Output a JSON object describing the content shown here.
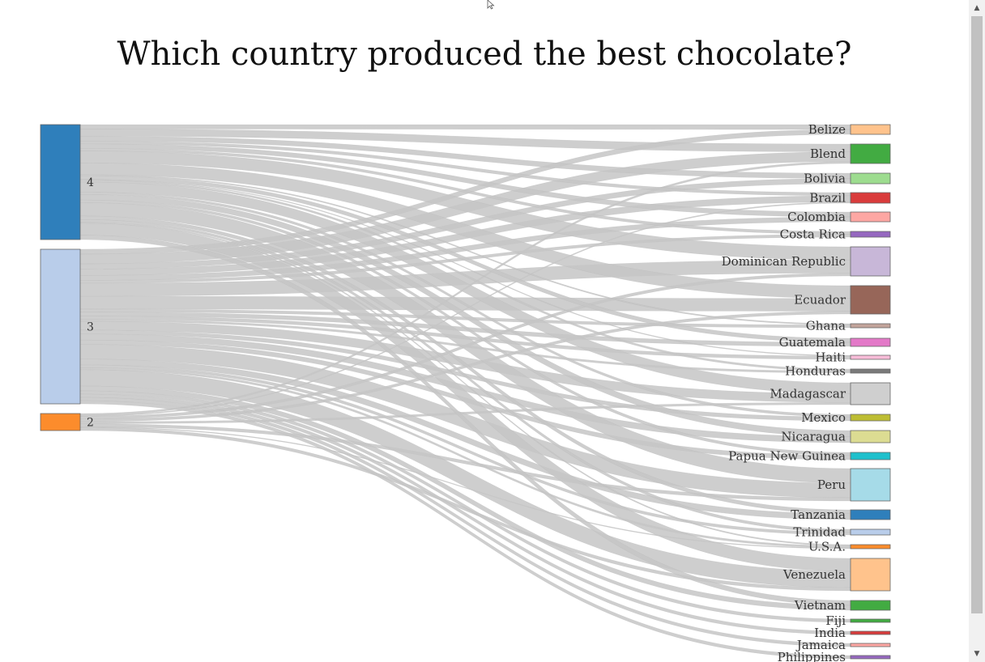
{
  "title": "Which country produced the best chocolate?",
  "chart_data": {
    "type": "sankey",
    "title": "Which country produced the best chocolate?",
    "source_nodes": [
      {
        "label": "4",
        "color": "#2f7fbb"
      },
      {
        "label": "3",
        "color": "#b9cdea"
      },
      {
        "label": "2",
        "color": "#fc8c2c"
      }
    ],
    "target_nodes": [
      {
        "label": "Belize",
        "color": "#ffc38c"
      },
      {
        "label": "Blend",
        "color": "#42ab42"
      },
      {
        "label": "Bolivia",
        "color": "#9ddc8f"
      },
      {
        "label": "Brazil",
        "color": "#d93c3c"
      },
      {
        "label": "Colombia",
        "color": "#fda7a3"
      },
      {
        "label": "Costa Rica",
        "color": "#9668c0"
      },
      {
        "label": "Dominican Republic",
        "color": "#c8b7d8"
      },
      {
        "label": "Ecuador",
        "color": "#976659"
      },
      {
        "label": "Ghana",
        "color": "#c3a49b"
      },
      {
        "label": "Guatemala",
        "color": "#e379c8"
      },
      {
        "label": "Haiti",
        "color": "#f7bcd8"
      },
      {
        "label": "Honduras",
        "color": "#7a7a7a"
      },
      {
        "label": "Madagascar",
        "color": "#cfcfcf"
      },
      {
        "label": "Mexico",
        "color": "#bdbd34"
      },
      {
        "label": "Nicaragua",
        "color": "#dcdc92"
      },
      {
        "label": "Papua New Guinea",
        "color": "#1fc0cc"
      },
      {
        "label": "Peru",
        "color": "#a6dbe8"
      },
      {
        "label": "Tanzania",
        "color": "#2f7fbb"
      },
      {
        "label": "Trinidad",
        "color": "#b9cdea"
      },
      {
        "label": "U.S.A.",
        "color": "#fc8c2c"
      },
      {
        "label": "Venezuela",
        "color": "#ffc38c"
      },
      {
        "label": "Vietnam",
        "color": "#42ab42"
      },
      {
        "label": "Fiji",
        "color": "#42ab42"
      },
      {
        "label": "India",
        "color": "#d93c3c"
      },
      {
        "label": "Jamaica",
        "color": "#fda7a3"
      },
      {
        "label": "Philippines",
        "color": "#9668c0"
      }
    ],
    "link_color": "#c6c6c6"
  },
  "scrollbar": {
    "up_arrow": "▲",
    "down_arrow": "▼"
  }
}
